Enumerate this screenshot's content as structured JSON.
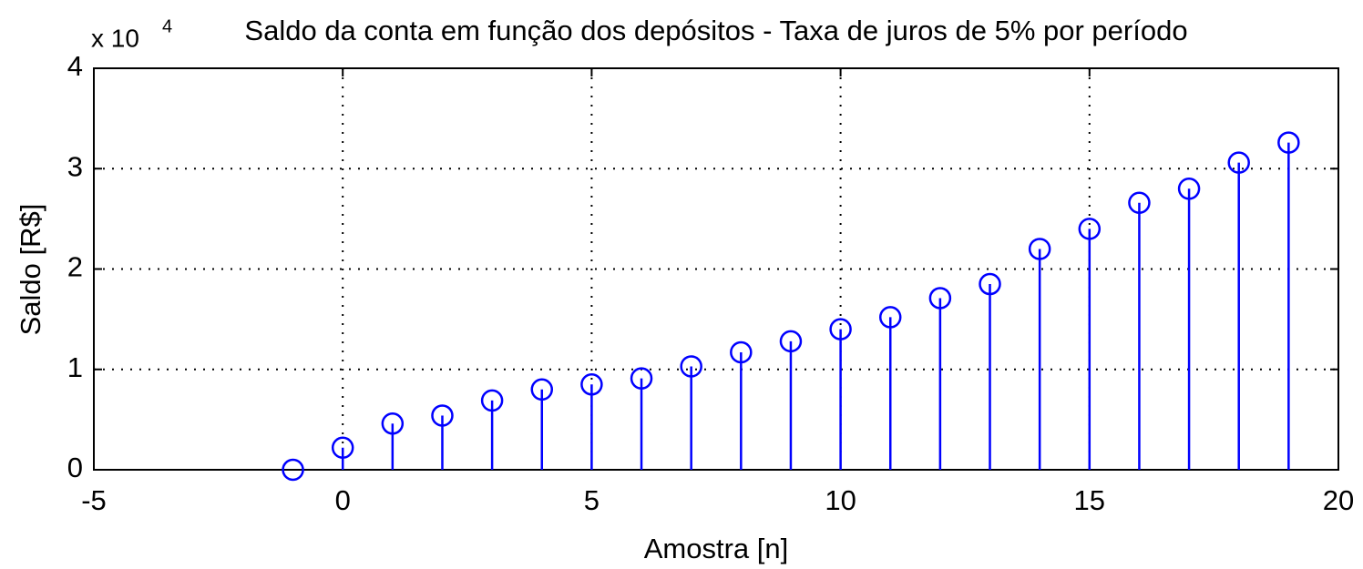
{
  "chart_data": {
    "type": "stem",
    "title": "Saldo da conta em função dos depósitos - Taxa de juros de 5% por período",
    "xlabel": "Amostra [n]",
    "ylabel": "Saldo [R$]",
    "y_multiplier": {
      "base": "x 10",
      "exponent": "4"
    },
    "x": [
      -1,
      0,
      1,
      2,
      3,
      4,
      5,
      6,
      7,
      8,
      9,
      10,
      11,
      12,
      13,
      14,
      15,
      16,
      17,
      18,
      19
    ],
    "values": [
      0,
      0.22,
      0.46,
      0.54,
      0.69,
      0.8,
      0.85,
      0.91,
      1.03,
      1.17,
      1.28,
      1.4,
      1.52,
      1.71,
      1.85,
      2.2,
      2.4,
      2.66,
      2.8,
      3.06,
      3.26
    ],
    "color": "#0000ff",
    "xlim": [
      -5,
      20
    ],
    "ylim": [
      0,
      4
    ],
    "xticks": [
      -5,
      0,
      5,
      10,
      15,
      20
    ],
    "yticks": [
      0,
      1,
      2,
      3,
      4
    ],
    "grid": true
  }
}
